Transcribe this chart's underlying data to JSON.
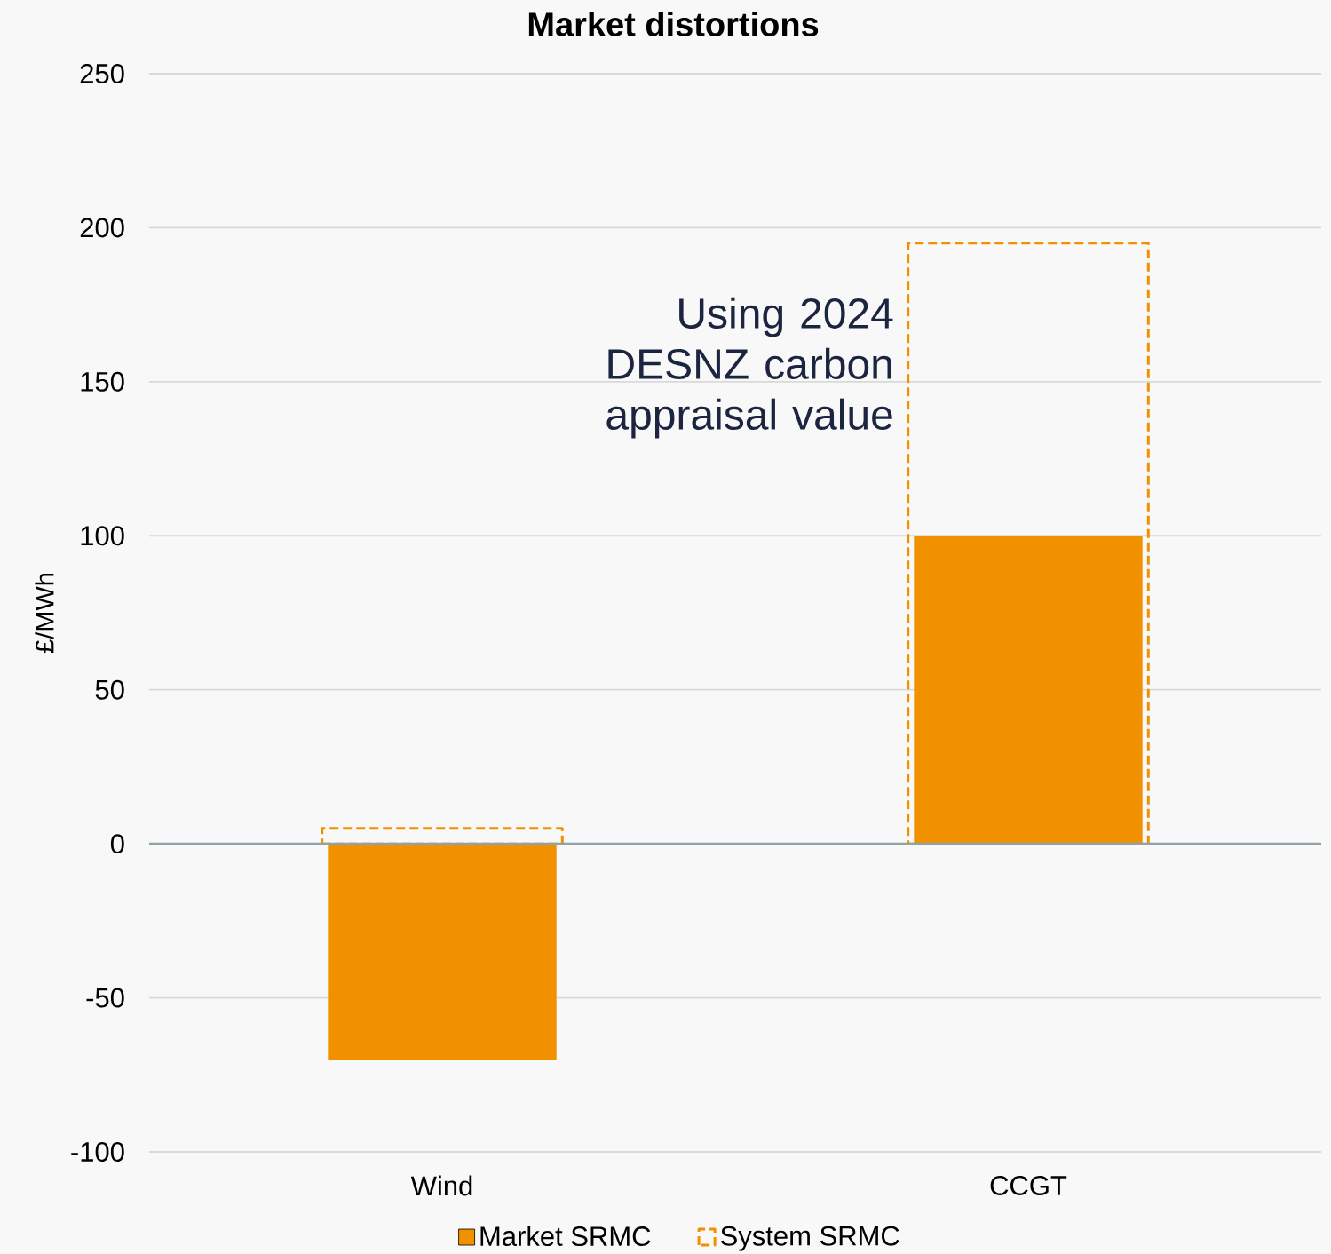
{
  "chart_data": {
    "type": "bar",
    "title": "Market distortions",
    "ylabel": "£/MWh",
    "categories": [
      "Wind",
      "CCGT"
    ],
    "series": [
      {
        "name": "Market SRMC",
        "color": "#f29100",
        "values": [
          -70,
          100
        ]
      },
      {
        "name": "System SRMC",
        "color": "#f29100",
        "line_style": "dashed",
        "values": [
          5,
          195
        ]
      }
    ],
    "ylim": [
      -100,
      250
    ],
    "yticks": [
      -100,
      -50,
      0,
      50,
      100,
      150,
      200,
      250
    ],
    "grid": "y",
    "legend": "bottom",
    "annotations": [
      "Using 2024 DESNZ carbon appraisal value"
    ]
  }
}
